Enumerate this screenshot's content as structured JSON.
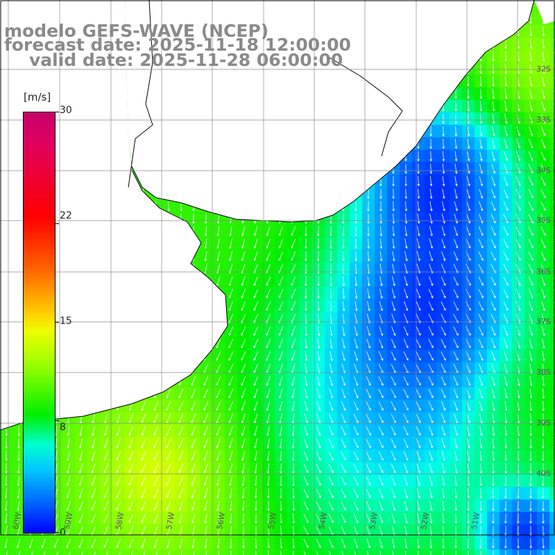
{
  "title": {
    "line1": "modelo GEFS-WAVE (NCEP)",
    "line2": "forecast date: 2025-11-18 12:00:00",
    "line3": "valid date: 2025-11-28 06:00:00"
  },
  "colorbar": {
    "unit": "[m/s]",
    "ticks": [
      "30",
      "22",
      "15",
      "8",
      "0"
    ],
    "min": 0,
    "max": 30
  },
  "lat_labels": [
    "32S",
    "33S",
    "34S",
    "35S",
    "36S",
    "37S",
    "38S",
    "39S",
    "40S"
  ],
  "lon_labels": [
    "60W",
    "59W",
    "58W",
    "57W",
    "56W",
    "55W",
    "54W",
    "53W",
    "52W",
    "51W"
  ],
  "colors": {
    "land": "#ffffff",
    "coast": "#000000",
    "grid": "#888888",
    "arrows": "#ffffff",
    "title": "#8a8a8a"
  },
  "map_description_values": {
    "field": "wind speed",
    "low_speed_region": "blue, near Uruguay coast / Rio de la Plata mouth",
    "high_speed_region": "yellow-green, southwest"
  }
}
